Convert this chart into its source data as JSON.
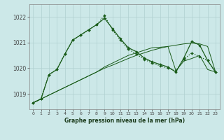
{
  "xlabel": "Graphe pression niveau de la mer (hPa)",
  "background_color": "#cce8e8",
  "grid_color": "#b0d0d0",
  "line_color": "#1a5c1a",
  "xticks": [
    0,
    1,
    2,
    3,
    4,
    5,
    6,
    7,
    8,
    9,
    10,
    11,
    12,
    13,
    14,
    15,
    16,
    17,
    18,
    19,
    20,
    21,
    22,
    23
  ],
  "yticks": [
    1019,
    1020,
    1021,
    1022
  ],
  "ylim": [
    1018.4,
    1022.5
  ],
  "xlim": [
    -0.5,
    23.5
  ],
  "series_main": [
    1018.65,
    1018.8,
    1019.75,
    1019.95,
    1020.55,
    1021.1,
    1021.3,
    1021.5,
    1021.7,
    1021.95,
    1021.55,
    1021.15,
    1020.8,
    1020.65,
    1020.4,
    1020.25,
    1020.15,
    1020.05,
    1019.85,
    1020.4,
    1021.05,
    1020.9,
    1020.3,
    1019.85
  ],
  "series_dotted": [
    1018.65,
    1018.8,
    1019.75,
    1019.95,
    1020.55,
    1021.1,
    1021.3,
    1021.5,
    1021.7,
    1022.05,
    1021.5,
    1021.1,
    1020.75,
    1020.55,
    1020.35,
    1020.2,
    1020.1,
    1020.0,
    1019.9,
    1020.35,
    1020.6,
    1020.45,
    1020.3,
    1019.85
  ],
  "series_flat1": [
    1018.65,
    1018.8,
    1018.95,
    1019.1,
    1019.25,
    1019.4,
    1019.55,
    1019.7,
    1019.85,
    1020.0,
    1020.12,
    1020.25,
    1020.38,
    1020.5,
    1020.6,
    1020.7,
    1020.78,
    1020.85,
    1020.9,
    1020.95,
    1020.98,
    1020.95,
    1020.85,
    1019.85
  ],
  "series_flat2": [
    1018.65,
    1018.8,
    1018.95,
    1019.1,
    1019.25,
    1019.4,
    1019.55,
    1019.7,
    1019.85,
    1020.05,
    1020.2,
    1020.35,
    1020.5,
    1020.6,
    1020.7,
    1020.8,
    1020.82,
    1020.85,
    1019.9,
    1020.28,
    1020.38,
    1020.5,
    1019.95,
    1019.85
  ]
}
